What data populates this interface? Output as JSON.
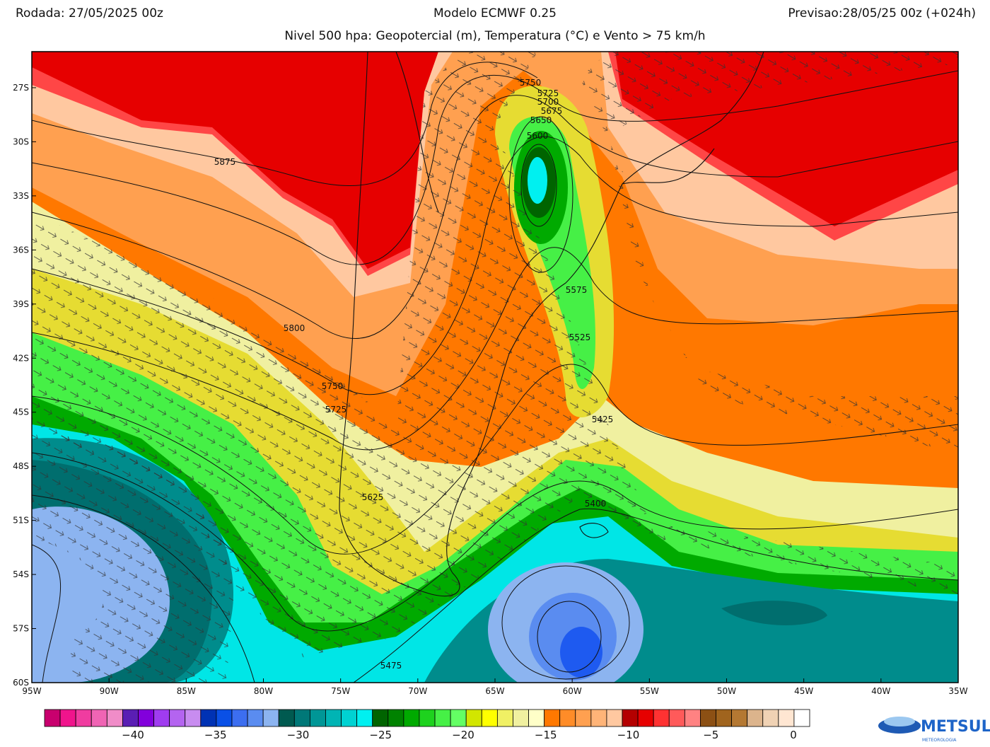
{
  "header": {
    "left": "Rodada: 27/05/2025 00z",
    "center": "Modelo ECMWF 0.25",
    "right": "Previsao:28/05/25 00z (+024h)",
    "subtitle": "Nivel 500 hpa: Geopotercial (m), Temperatura (°C) e Vento > 75 km/h"
  },
  "map": {
    "lon_range": [
      -95,
      -35
    ],
    "lat_range": [
      -25,
      -60
    ],
    "lat_ticks": [
      {
        "value": -27,
        "label": "27S"
      },
      {
        "value": -30,
        "label": "30S"
      },
      {
        "value": -33,
        "label": "33S"
      },
      {
        "value": -36,
        "label": "36S"
      },
      {
        "value": -39,
        "label": "39S"
      },
      {
        "value": -42,
        "label": "42S"
      },
      {
        "value": -45,
        "label": "45S"
      },
      {
        "value": -48,
        "label": "48S"
      },
      {
        "value": -51,
        "label": "51S"
      },
      {
        "value": -54,
        "label": "54S"
      },
      {
        "value": -57,
        "label": "57S"
      },
      {
        "value": -60,
        "label": "60S"
      }
    ],
    "lon_ticks": [
      {
        "value": -95,
        "label": "95W"
      },
      {
        "value": -90,
        "label": "90W"
      },
      {
        "value": -85,
        "label": "85W"
      },
      {
        "value": -80,
        "label": "80W"
      },
      {
        "value": -75,
        "label": "75W"
      },
      {
        "value": -70,
        "label": "70W"
      },
      {
        "value": -65,
        "label": "65W"
      },
      {
        "value": -60,
        "label": "60W"
      },
      {
        "value": -55,
        "label": "55W"
      },
      {
        "value": -50,
        "label": "50W"
      },
      {
        "value": -45,
        "label": "45W"
      },
      {
        "value": -40,
        "label": "40W"
      },
      {
        "value": -35,
        "label": "35W"
      }
    ],
    "contour_labels": [
      "5750",
      "5725",
      "5700",
      "5675",
      "5650",
      "5600",
      "5875",
      "5800",
      "5575",
      "5525",
      "5750",
      "5725",
      "5425",
      "5400",
      "5625",
      "5475"
    ]
  },
  "colorbar": {
    "colors": [
      "#c8006e",
      "#f0148c",
      "#f03ca0",
      "#f064b4",
      "#f08cc8",
      "#5a1eb4",
      "#8200dc",
      "#a03cf0",
      "#b464f0",
      "#c88cf0",
      "#0032b4",
      "#0a50e6",
      "#3c6ef0",
      "#5a8cf0",
      "#8cb4f0",
      "#005a50",
      "#007878",
      "#009696",
      "#00b4b4",
      "#00d2d2",
      "#00f0f0",
      "#006400",
      "#008200",
      "#00aa00",
      "#1ed21e",
      "#46f046",
      "#64ff64",
      "#d2e600",
      "#ffff00",
      "#f0f064",
      "#f0f0a0",
      "#ffffc8",
      "#ff7800",
      "#ff8c28",
      "#ffa050",
      "#ffb478",
      "#ffc8a0",
      "#b40000",
      "#e60000",
      "#ff3232",
      "#ff5a5a",
      "#ff8282",
      "#8c5014",
      "#a0641e",
      "#b47832",
      "#dcb48c",
      "#f0d2b4",
      "#ffe6d2",
      "#ffffff"
    ],
    "labels": [
      "−40",
      "−35",
      "−30",
      "−25",
      "−20",
      "−15",
      "−10",
      "−5",
      "0"
    ]
  },
  "logo": {
    "text": "METSUL",
    "subtext": "METEOROLOGIA"
  }
}
